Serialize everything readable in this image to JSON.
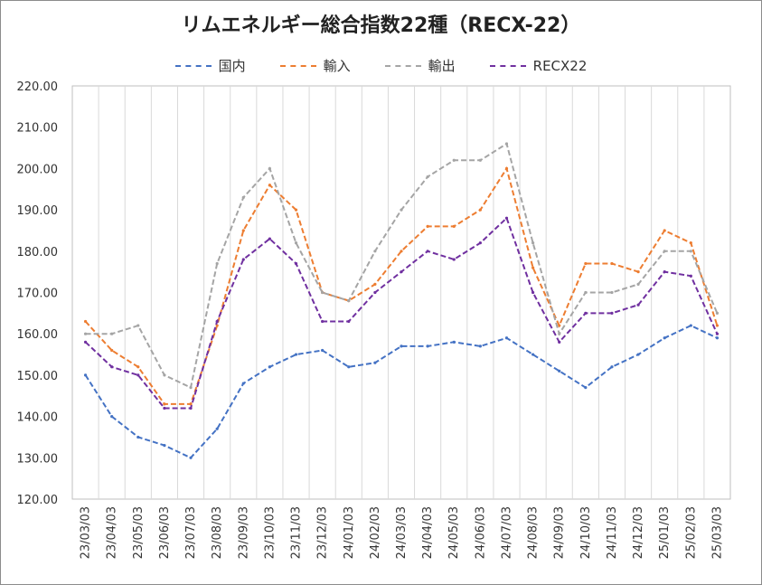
{
  "chart_data": {
    "type": "line",
    "title": "リムエネルギー総合指数22種（RECX-22）",
    "ylim": [
      120,
      220
    ],
    "yticks": [
      "120.00",
      "130.00",
      "140.00",
      "150.00",
      "160.00",
      "170.00",
      "180.00",
      "190.00",
      "200.00",
      "210.00",
      "220.00"
    ],
    "categories": [
      "23/03/03",
      "23/04/03",
      "23/05/03",
      "23/06/03",
      "23/07/03",
      "23/08/03",
      "23/09/03",
      "23/10/03",
      "23/11/03",
      "23/12/03",
      "24/01/03",
      "24/02/03",
      "24/03/03",
      "24/04/03",
      "24/05/03",
      "24/06/03",
      "24/07/03",
      "24/08/03",
      "24/09/03",
      "24/10/03",
      "24/11/03",
      "24/12/03",
      "25/01/03",
      "25/02/03",
      "25/03/03"
    ],
    "grid": "vertical",
    "legend_position": "top",
    "series": [
      {
        "name": "国内",
        "color": "#4472C4",
        "values": [
          150,
          140,
          135,
          133,
          130,
          137,
          148,
          152,
          155,
          156,
          152,
          153,
          157,
          157,
          158,
          157,
          159,
          155,
          151,
          147,
          152,
          155,
          159,
          162,
          159
        ]
      },
      {
        "name": "輸入",
        "color": "#ED7D31",
        "values": [
          163,
          156,
          152,
          143,
          143,
          162,
          185,
          196,
          190,
          170,
          168,
          172,
          180,
          186,
          186,
          190,
          200,
          176,
          162,
          177,
          177,
          175,
          185,
          182,
          162
        ]
      },
      {
        "name": "輸出",
        "color": "#A5A5A5",
        "values": [
          160,
          160,
          162,
          150,
          147,
          177,
          193,
          200,
          182,
          170,
          168,
          180,
          190,
          198,
          202,
          202,
          206,
          182,
          160,
          170,
          170,
          172,
          180,
          180,
          165
        ]
      },
      {
        "name": "RECX22",
        "color": "#7030A0",
        "values": [
          158,
          152,
          150,
          142,
          142,
          163,
          178,
          183,
          177,
          163,
          163,
          170,
          175,
          180,
          178,
          182,
          188,
          170,
          158,
          165,
          165,
          167,
          175,
          174,
          160
        ]
      }
    ]
  }
}
